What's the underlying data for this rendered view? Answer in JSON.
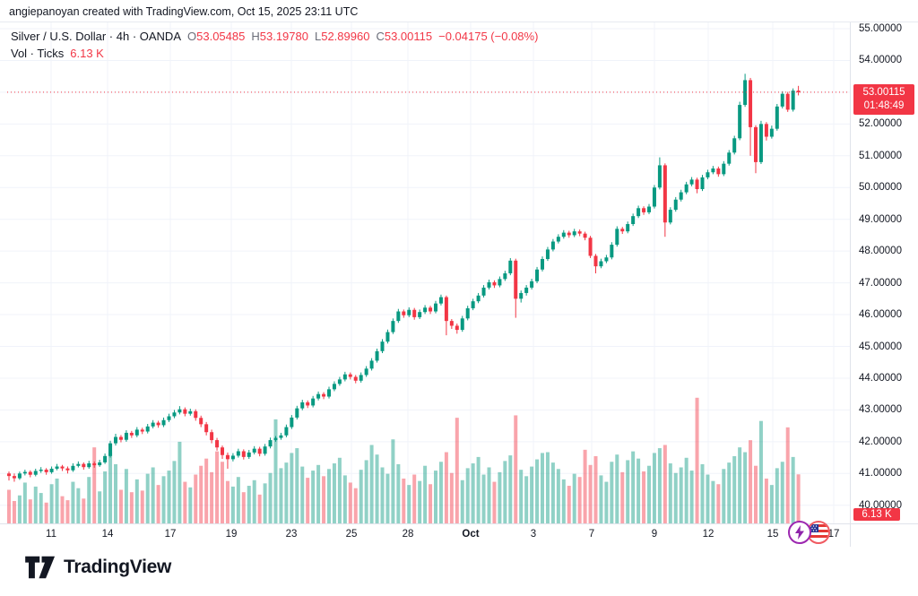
{
  "attribution": "angiepanoyan created with TradingView.com, Oct 15, 2025 23:11 UTC",
  "legend": {
    "title": "Silver / U.S. Dollar · 4h · OANDA",
    "items": [
      {
        "k": "O",
        "v": "53.05485"
      },
      {
        "k": "H",
        "v": "53.19780"
      },
      {
        "k": "L",
        "v": "52.89960"
      },
      {
        "k": "C",
        "v": "53.00115"
      }
    ],
    "change": "−0.04175 (−0.08%)",
    "vol_label": "Vol · Ticks",
    "vol_value": "6.13 K"
  },
  "last_price": {
    "value": "53.00115",
    "countdown": "01:48:49",
    "price": 53.00115
  },
  "volume_badge": {
    "value": "6.13 K"
  },
  "footer": {
    "brand": "TradingView"
  },
  "events": [
    {
      "name": "economic-event-lightning"
    },
    {
      "name": "economic-event-us-flag"
    }
  ],
  "colors": {
    "up": "#089981",
    "down": "#f23645",
    "vol_up": "rgba(8,153,129,0.45)",
    "vol_down": "rgba(242,54,69,0.45)",
    "grid": "#f0f3fa",
    "axis_text": "#131722",
    "badge": "#f23645",
    "last_price_line": "#f23645"
  },
  "chart_data": {
    "type": "candlestick",
    "title": "Silver / U.S. Dollar, 4h, OANDA",
    "symbol": "Silver / U.S. Dollar",
    "interval": "4h",
    "exchange": "OANDA",
    "ylabel": "Price (USD)",
    "ylim": [
      40,
      55
    ],
    "grid": true,
    "last_close": 53.00115,
    "price_ticks": [
      {
        "p": 55,
        "label": "55.00000"
      },
      {
        "p": 54,
        "label": "54.00000"
      },
      {
        "p": 52,
        "label": "52.00000"
      },
      {
        "p": 51,
        "label": "51.00000"
      },
      {
        "p": 50,
        "label": "50.00000"
      },
      {
        "p": 49,
        "label": "49.00000"
      },
      {
        "p": 48,
        "label": "48.00000"
      },
      {
        "p": 47,
        "label": "47.00000"
      },
      {
        "p": 46,
        "label": "46.00000"
      },
      {
        "p": 45,
        "label": "45.00000"
      },
      {
        "p": 44,
        "label": "44.00000"
      },
      {
        "p": 43,
        "label": "43.00000"
      },
      {
        "p": 42,
        "label": "42.00000"
      },
      {
        "p": 41,
        "label": "41.00000"
      },
      {
        "p": 40,
        "label": "40.00000"
      }
    ],
    "time_ticks": [
      {
        "label": "11",
        "x": 57
      },
      {
        "label": "14",
        "x": 120
      },
      {
        "label": "17",
        "x": 190
      },
      {
        "label": "19",
        "x": 258
      },
      {
        "label": "23",
        "x": 325
      },
      {
        "label": "25",
        "x": 392
      },
      {
        "label": "28",
        "x": 455
      },
      {
        "label": "Oct",
        "x": 525,
        "bold": true
      },
      {
        "label": "3",
        "x": 595
      },
      {
        "label": "7",
        "x": 660
      },
      {
        "label": "9",
        "x": 730
      },
      {
        "label": "12",
        "x": 790
      },
      {
        "label": "15",
        "x": 862
      },
      {
        "label": "17",
        "x": 930
      }
    ],
    "candles": [
      [
        41.0,
        41.06,
        40.78,
        40.92
      ],
      [
        40.92,
        41.0,
        40.74,
        40.85
      ],
      [
        40.85,
        41.06,
        40.8,
        41.0
      ],
      [
        41.0,
        41.12,
        40.94,
        41.05
      ],
      [
        41.05,
        41.1,
        40.88,
        40.96
      ],
      [
        40.96,
        41.15,
        40.91,
        41.08
      ],
      [
        41.08,
        41.2,
        41.02,
        41.12
      ],
      [
        41.12,
        41.17,
        40.96,
        41.04
      ],
      [
        41.04,
        41.22,
        40.99,
        41.15
      ],
      [
        41.15,
        41.3,
        41.1,
        41.22
      ],
      [
        41.22,
        41.27,
        41.08,
        41.16
      ],
      [
        41.16,
        41.22,
        41.0,
        41.1
      ],
      [
        41.1,
        41.32,
        41.05,
        41.24
      ],
      [
        41.24,
        41.38,
        41.19,
        41.3
      ],
      [
        41.3,
        41.35,
        41.12,
        41.2
      ],
      [
        41.2,
        41.4,
        41.15,
        41.32
      ],
      [
        41.32,
        41.38,
        41.18,
        41.26
      ],
      [
        41.26,
        41.43,
        41.21,
        41.35
      ],
      [
        41.35,
        41.63,
        41.3,
        41.55
      ],
      [
        41.55,
        42.03,
        41.5,
        41.95
      ],
      [
        41.95,
        42.25,
        41.88,
        42.15
      ],
      [
        42.15,
        42.21,
        41.98,
        42.06
      ],
      [
        42.06,
        42.36,
        42.0,
        42.28
      ],
      [
        42.28,
        42.34,
        42.12,
        42.2
      ],
      [
        42.2,
        42.46,
        42.14,
        42.38
      ],
      [
        42.38,
        42.44,
        42.24,
        42.32
      ],
      [
        42.32,
        42.56,
        42.26,
        42.48
      ],
      [
        42.48,
        42.68,
        42.42,
        42.6
      ],
      [
        42.6,
        42.66,
        42.44,
        42.52
      ],
      [
        42.52,
        42.76,
        42.46,
        42.68
      ],
      [
        42.68,
        42.88,
        42.62,
        42.8
      ],
      [
        42.8,
        43.0,
        42.74,
        42.92
      ],
      [
        42.92,
        43.12,
        42.86,
        43.02
      ],
      [
        43.02,
        43.08,
        42.8,
        42.88
      ],
      [
        42.88,
        43.04,
        42.82,
        42.96
      ],
      [
        42.96,
        43.02,
        42.66,
        42.75
      ],
      [
        42.75,
        42.82,
        42.46,
        42.55
      ],
      [
        42.55,
        42.62,
        42.2,
        42.3
      ],
      [
        42.3,
        42.38,
        41.95,
        42.05
      ],
      [
        42.05,
        42.12,
        41.72,
        41.82
      ],
      [
        41.82,
        41.88,
        41.46,
        41.58
      ],
      [
        41.58,
        41.66,
        41.15,
        41.45
      ],
      [
        41.45,
        41.64,
        41.38,
        41.56
      ],
      [
        41.56,
        41.78,
        41.5,
        41.7
      ],
      [
        41.7,
        41.76,
        41.44,
        41.52
      ],
      [
        41.52,
        41.74,
        41.46,
        41.66
      ],
      [
        41.66,
        41.86,
        41.6,
        41.78
      ],
      [
        41.78,
        41.84,
        41.54,
        41.62
      ],
      [
        41.62,
        41.93,
        41.56,
        41.85
      ],
      [
        41.85,
        42.13,
        41.79,
        42.05
      ],
      [
        42.05,
        42.18,
        42.0,
        42.12
      ],
      [
        42.12,
        42.28,
        42.06,
        42.2
      ],
      [
        42.2,
        42.54,
        42.14,
        42.46
      ],
      [
        42.46,
        42.84,
        42.4,
        42.76
      ],
      [
        42.76,
        43.13,
        42.7,
        43.05
      ],
      [
        43.05,
        43.32,
        42.99,
        43.24
      ],
      [
        43.24,
        43.3,
        43.06,
        43.14
      ],
      [
        43.14,
        43.44,
        43.08,
        43.36
      ],
      [
        43.36,
        43.58,
        43.3,
        43.5
      ],
      [
        43.5,
        43.56,
        43.34,
        43.42
      ],
      [
        43.42,
        43.73,
        43.36,
        43.65
      ],
      [
        43.65,
        43.9,
        43.59,
        43.82
      ],
      [
        43.82,
        44.04,
        43.76,
        43.96
      ],
      [
        43.96,
        44.2,
        43.9,
        44.12
      ],
      [
        44.12,
        44.18,
        43.96,
        44.04
      ],
      [
        44.04,
        44.1,
        43.84,
        43.92
      ],
      [
        43.92,
        44.18,
        43.86,
        44.1
      ],
      [
        44.1,
        44.38,
        44.04,
        44.3
      ],
      [
        44.3,
        44.63,
        44.24,
        44.55
      ],
      [
        44.55,
        44.93,
        44.49,
        44.85
      ],
      [
        44.85,
        45.23,
        44.79,
        45.15
      ],
      [
        45.15,
        45.53,
        45.09,
        45.45
      ],
      [
        45.45,
        45.88,
        45.39,
        45.8
      ],
      [
        45.8,
        46.18,
        45.74,
        46.1
      ],
      [
        46.1,
        46.16,
        45.9,
        45.98
      ],
      [
        45.98,
        46.23,
        45.92,
        46.15
      ],
      [
        46.15,
        46.21,
        45.84,
        45.92
      ],
      [
        45.92,
        46.16,
        45.86,
        46.08
      ],
      [
        46.08,
        46.3,
        46.02,
        46.22
      ],
      [
        46.22,
        46.28,
        46.02,
        46.1
      ],
      [
        46.1,
        46.43,
        46.04,
        46.35
      ],
      [
        46.35,
        46.63,
        46.29,
        46.55
      ],
      [
        46.55,
        46.6,
        45.35,
        45.8
      ],
      [
        45.8,
        45.86,
        45.55,
        45.65
      ],
      [
        45.65,
        45.72,
        45.4,
        45.52
      ],
      [
        45.52,
        45.96,
        45.46,
        45.88
      ],
      [
        45.88,
        46.28,
        45.82,
        46.2
      ],
      [
        46.2,
        46.5,
        46.14,
        46.42
      ],
      [
        46.42,
        46.68,
        46.36,
        46.6
      ],
      [
        46.6,
        46.93,
        46.54,
        46.85
      ],
      [
        46.85,
        47.1,
        46.79,
        47.02
      ],
      [
        47.02,
        47.08,
        46.84,
        46.92
      ],
      [
        46.92,
        47.2,
        46.86,
        47.12
      ],
      [
        47.12,
        47.38,
        47.06,
        47.3
      ],
      [
        47.3,
        47.78,
        47.24,
        47.7
      ],
      [
        47.7,
        47.76,
        45.9,
        46.5
      ],
      [
        46.5,
        46.76,
        46.38,
        46.68
      ],
      [
        46.68,
        46.93,
        46.6,
        46.85
      ],
      [
        46.85,
        47.13,
        46.79,
        47.05
      ],
      [
        47.05,
        47.5,
        46.99,
        47.42
      ],
      [
        47.42,
        47.83,
        47.36,
        47.75
      ],
      [
        47.75,
        48.13,
        47.69,
        48.05
      ],
      [
        48.05,
        48.38,
        47.99,
        48.3
      ],
      [
        48.3,
        48.53,
        48.24,
        48.45
      ],
      [
        48.45,
        48.66,
        48.39,
        48.58
      ],
      [
        48.58,
        48.64,
        48.42,
        48.5
      ],
      [
        48.5,
        48.7,
        48.44,
        48.62
      ],
      [
        48.62,
        48.68,
        48.47,
        48.55
      ],
      [
        48.55,
        48.61,
        48.34,
        48.42
      ],
      [
        48.42,
        48.48,
        47.78,
        47.85
      ],
      [
        47.85,
        47.91,
        47.3,
        47.52
      ],
      [
        47.52,
        47.76,
        47.46,
        47.68
      ],
      [
        47.68,
        47.88,
        47.62,
        47.8
      ],
      [
        47.8,
        48.28,
        47.74,
        48.2
      ],
      [
        48.2,
        48.78,
        48.14,
        48.7
      ],
      [
        48.7,
        48.76,
        48.54,
        48.62
      ],
      [
        48.62,
        48.93,
        48.56,
        48.85
      ],
      [
        48.85,
        49.18,
        48.79,
        49.1
      ],
      [
        49.1,
        49.43,
        49.04,
        49.35
      ],
      [
        49.35,
        49.41,
        49.14,
        49.22
      ],
      [
        49.22,
        49.48,
        49.16,
        49.4
      ],
      [
        49.4,
        50.08,
        49.34,
        50.0
      ],
      [
        50.0,
        50.95,
        49.94,
        50.7
      ],
      [
        50.7,
        50.76,
        48.45,
        48.9
      ],
      [
        48.9,
        49.38,
        48.84,
        49.3
      ],
      [
        49.3,
        49.7,
        49.24,
        49.62
      ],
      [
        49.62,
        49.93,
        49.56,
        49.85
      ],
      [
        49.85,
        50.18,
        49.79,
        50.1
      ],
      [
        50.1,
        50.33,
        50.04,
        50.25
      ],
      [
        50.25,
        50.31,
        49.82,
        49.95
      ],
      [
        49.95,
        50.4,
        49.89,
        50.32
      ],
      [
        50.32,
        50.56,
        50.26,
        50.48
      ],
      [
        50.48,
        50.68,
        50.42,
        50.6
      ],
      [
        50.6,
        50.66,
        50.34,
        50.42
      ],
      [
        50.42,
        50.83,
        50.36,
        50.75
      ],
      [
        50.75,
        51.18,
        50.69,
        51.1
      ],
      [
        51.1,
        51.63,
        51.04,
        51.55
      ],
      [
        51.55,
        52.7,
        51.49,
        52.6
      ],
      [
        52.6,
        53.58,
        52.54,
        53.38
      ],
      [
        53.38,
        53.45,
        51.0,
        51.9
      ],
      [
        51.9,
        51.96,
        50.45,
        50.8
      ],
      [
        50.8,
        52.1,
        50.74,
        52.0
      ],
      [
        52.0,
        52.06,
        51.48,
        51.6
      ],
      [
        51.6,
        51.95,
        51.54,
        51.85
      ],
      [
        51.85,
        52.63,
        51.79,
        52.55
      ],
      [
        52.55,
        53.03,
        52.49,
        52.95
      ],
      [
        52.95,
        53.01,
        52.38,
        52.45
      ],
      [
        52.45,
        53.12,
        52.39,
        53.05
      ],
      [
        53.05,
        53.2,
        52.9,
        53.0
      ]
    ],
    "volumes_k": [
      4.2,
      2.8,
      3.5,
      5.1,
      3.0,
      4.6,
      3.8,
      2.6,
      4.9,
      5.6,
      3.4,
      2.9,
      5.2,
      4.4,
      3.1,
      5.8,
      9.5,
      4.0,
      6.5,
      8.9,
      7.4,
      4.2,
      6.8,
      3.9,
      5.5,
      4.1,
      6.2,
      7.0,
      4.8,
      5.9,
      6.6,
      7.8,
      10.2,
      5.2,
      4.5,
      6.1,
      7.2,
      8.1,
      6.4,
      9.0,
      7.7,
      5.3,
      4.6,
      5.8,
      3.9,
      4.7,
      5.4,
      3.6,
      5.0,
      6.3,
      13.0,
      6.9,
      7.6,
      8.8,
      9.4,
      7.1,
      5.7,
      6.6,
      7.3,
      5.9,
      6.8,
      7.5,
      8.2,
      6.0,
      5.1,
      4.4,
      6.7,
      7.9,
      9.8,
      8.6,
      7.0,
      6.2,
      10.5,
      7.4,
      5.6,
      4.8,
      6.1,
      5.3,
      7.2,
      4.9,
      6.6,
      7.7,
      8.9,
      6.3,
      13.2,
      5.4,
      6.9,
      7.5,
      8.3,
      6.1,
      7.0,
      5.2,
      6.4,
      7.8,
      8.5,
      13.5,
      6.7,
      5.9,
      7.1,
      8.0,
      8.8,
      8.9,
      7.6,
      6.8,
      5.5,
      4.7,
      6.2,
      5.8,
      9.2,
      7.3,
      8.4,
      6.0,
      5.2,
      7.7,
      8.6,
      6.4,
      7.9,
      9.0,
      8.1,
      6.5,
      7.2,
      8.8,
      9.4,
      9.8,
      7.5,
      6.3,
      7.0,
      8.2,
      6.6,
      15.7,
      7.4,
      6.1,
      5.3,
      4.9,
      6.8,
      7.6,
      8.4,
      9.5,
      8.9,
      10.4,
      7.2,
      12.8,
      5.6,
      4.8,
      6.9,
      7.7,
      12.0,
      8.3,
      6.13
    ]
  }
}
